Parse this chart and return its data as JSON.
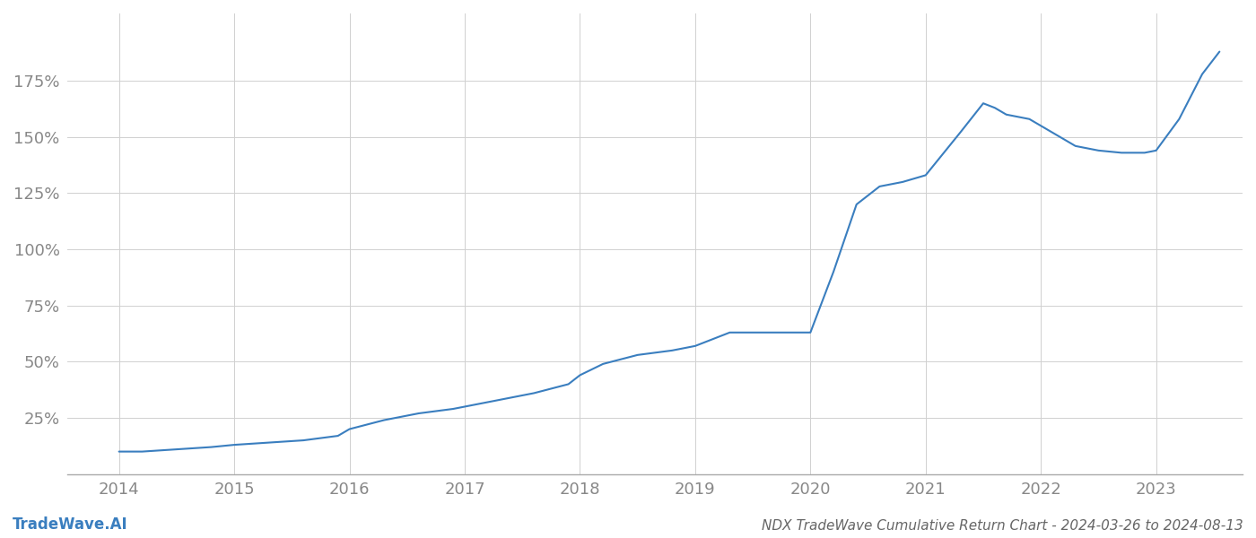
{
  "title": "NDX TradeWave Cumulative Return Chart - 2024-03-26 to 2024-08-13",
  "watermark": "TradeWave.AI",
  "line_color": "#3a7ebf",
  "background_color": "#ffffff",
  "grid_color": "#d0d0d0",
  "years": [
    2014.0,
    2014.2,
    2014.5,
    2014.8,
    2015.0,
    2015.3,
    2015.6,
    2015.9,
    2016.0,
    2016.3,
    2016.6,
    2016.9,
    2017.0,
    2017.3,
    2017.6,
    2017.9,
    2018.0,
    2018.2,
    2018.5,
    2018.8,
    2019.0,
    2019.1,
    2019.2,
    2019.25,
    2019.3,
    2019.5,
    2019.7,
    2019.9,
    2020.0,
    2020.2,
    2020.4,
    2020.6,
    2020.8,
    2021.0,
    2021.3,
    2021.5,
    2021.6,
    2021.7,
    2021.9,
    2022.0,
    2022.1,
    2022.2,
    2022.3,
    2022.5,
    2022.7,
    2022.9,
    2023.0,
    2023.2,
    2023.4,
    2023.55
  ],
  "values": [
    10,
    10,
    11,
    12,
    13,
    14,
    15,
    17,
    20,
    24,
    27,
    29,
    30,
    33,
    36,
    40,
    44,
    49,
    53,
    55,
    57,
    59,
    61,
    62,
    63,
    63,
    63,
    63,
    63,
    90,
    120,
    128,
    130,
    133,
    152,
    165,
    163,
    160,
    158,
    155,
    152,
    149,
    146,
    144,
    143,
    143,
    144,
    158,
    178,
    188
  ],
  "xtick_labels": [
    "2014",
    "2015",
    "2016",
    "2017",
    "2018",
    "2019",
    "2020",
    "2021",
    "2022",
    "2023"
  ],
  "xtick_positions": [
    2014,
    2015,
    2016,
    2017,
    2018,
    2019,
    2020,
    2021,
    2022,
    2023
  ],
  "ytick_values": [
    25,
    50,
    75,
    100,
    125,
    150,
    175
  ],
  "ytick_labels": [
    "25%",
    "50%",
    "75%",
    "100%",
    "125%",
    "150%",
    "175%"
  ],
  "xlim": [
    2013.55,
    2023.75
  ],
  "ylim": [
    0,
    205
  ],
  "line_width": 1.5,
  "tick_label_color": "#888888",
  "title_color": "#666666",
  "watermark_color": "#3a7ebf",
  "title_fontsize": 11,
  "tick_fontsize": 13,
  "watermark_fontsize": 12
}
